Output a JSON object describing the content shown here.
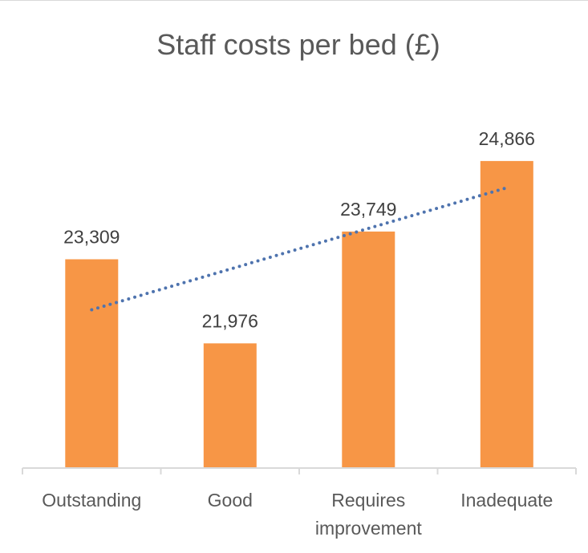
{
  "chart_data": {
    "type": "bar",
    "title": "Staff costs per bed (£)",
    "xlabel": "",
    "ylabel": "",
    "categories": [
      [
        "Outstanding"
      ],
      [
        "Good"
      ],
      [
        "Requires",
        "improvement"
      ],
      [
        "Inadequate"
      ]
    ],
    "values": [
      23309,
      21976,
      23749,
      24866
    ],
    "value_labels": [
      "23,309",
      "21,976",
      "23,749",
      "24,866"
    ],
    "ylim": [
      20000,
      25500
    ],
    "grid": false,
    "legend": "none",
    "trendline": {
      "type": "linear",
      "style": "dotted",
      "color": "#4e73ae"
    },
    "colors": {
      "bar": "#f79646",
      "axis": "#d9d9d9",
      "text": "#595959"
    }
  }
}
